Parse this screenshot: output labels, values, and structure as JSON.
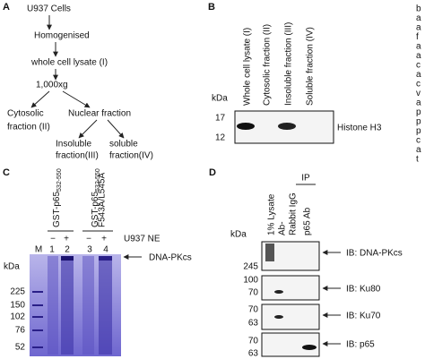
{
  "panel_a": {
    "label": "A",
    "start": "U937 Cells",
    "step1": "Homogenised",
    "step2": "whole cell lysate (I)",
    "step3": "1,000xg",
    "cytosolic": [
      "Cytosolic",
      "fraction (II)"
    ],
    "nuclear": "Nuclear fraction",
    "insoluble": [
      "Insoluble",
      "fraction(III)"
    ],
    "soluble": [
      "soluble",
      "fraction(IV)"
    ]
  },
  "panel_b": {
    "label": "B",
    "lanes": [
      "Whole cell lysate (I)",
      "Cytosolic fraction (II)",
      "Insoluble fraction (III)",
      "Soluble fraction (IV)"
    ],
    "unit": "kDa",
    "markers": [
      "17",
      "12"
    ],
    "blot": "Histone H3"
  },
  "panel_c": {
    "label": "C",
    "constructs": [
      {
        "name": "GST-p65",
        "sub": "532-550"
      },
      {
        "name": "GST-p65",
        "sub": "532-550",
        "mutation": "F543A/L545A"
      }
    ],
    "treatment": [
      "−",
      "+",
      "−",
      "+"
    ],
    "treatment_label": "U937 NE",
    "lanes": [
      "M",
      "1",
      "2",
      "3",
      "4"
    ],
    "unit": "kDa",
    "markers": [
      "225",
      "150",
      "102",
      "76",
      "52"
    ],
    "arrow_label": "DNA-PKcs"
  },
  "panel_d": {
    "label": "D",
    "ip_label": "IP",
    "lanes": [
      "1% Lysate",
      "Ab-",
      "Rabbit IgG",
      "p65 Ab"
    ],
    "unit": "kDa",
    "blots": [
      {
        "markers": [
          "245"
        ],
        "label": "IB: DNA-PKcs"
      },
      {
        "markers": [
          "100",
          "70"
        ],
        "label": "IB: Ku80"
      },
      {
        "markers": [
          "70",
          "63"
        ],
        "label": "IB: Ku70"
      },
      {
        "markers": [
          "70",
          "63"
        ],
        "label": "IB: p65"
      }
    ]
  },
  "cropped_text": [
    "b",
    "a",
    "a",
    "f",
    "a",
    "a",
    "c",
    "a",
    "c",
    "v",
    "a",
    "p",
    "p",
    "p",
    "c",
    "a",
    "t"
  ]
}
